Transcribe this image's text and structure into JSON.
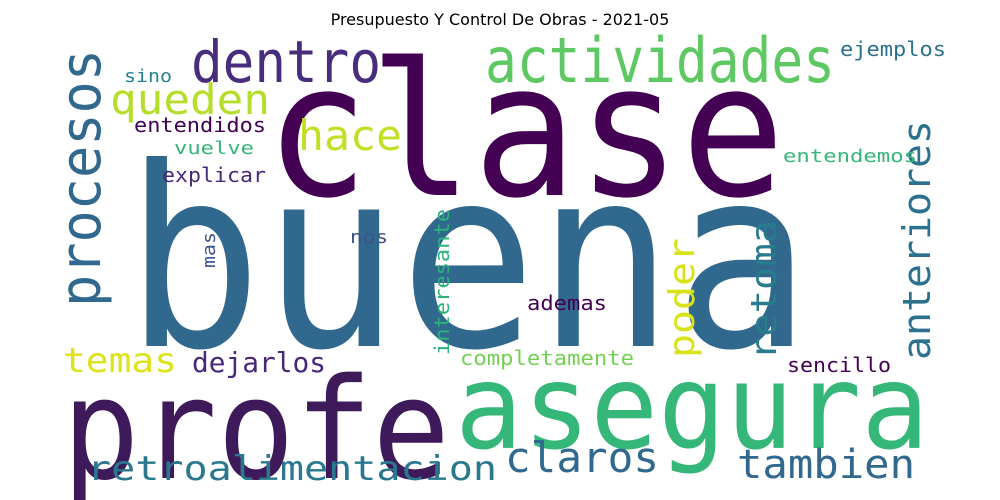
{
  "title": "Presupuesto Y Control De Obras - 2021-05",
  "words": [
    {
      "text": "buena",
      "color": "#31688e"
    },
    {
      "text": "clase",
      "color": "#440154"
    },
    {
      "text": "profe",
      "color": "#3e1a5a"
    },
    {
      "text": "asegura",
      "color": "#35b779"
    },
    {
      "text": "actividades",
      "color": "#5ec962"
    },
    {
      "text": "dentro",
      "color": "#472d7b"
    },
    {
      "text": "procesos",
      "color": "#31688e"
    },
    {
      "text": "queden",
      "color": "#b5de2b"
    },
    {
      "text": "hace",
      "color": "#c2df23"
    },
    {
      "text": "anteriores",
      "color": "#2c728e"
    },
    {
      "text": "retoma",
      "color": "#287c8e"
    },
    {
      "text": "poder",
      "color": "#d8e219"
    },
    {
      "text": "temas",
      "color": "#dde318"
    },
    {
      "text": "dejarlos",
      "color": "#482878"
    },
    {
      "text": "retroalimentacion",
      "color": "#2a788e"
    },
    {
      "text": "claros",
      "color": "#31688e"
    },
    {
      "text": "tambien",
      "color": "#31688e"
    },
    {
      "text": "ejemplos",
      "color": "#2c728e"
    },
    {
      "text": "sino",
      "color": "#26828e"
    },
    {
      "text": "entendidos",
      "color": "#440154"
    },
    {
      "text": "vuelve",
      "color": "#35b779"
    },
    {
      "text": "explicar",
      "color": "#482878"
    },
    {
      "text": "entendemos",
      "color": "#35b779"
    },
    {
      "text": "nos",
      "color": "#3b528b"
    },
    {
      "text": "mas",
      "color": "#3b528b"
    },
    {
      "text": "interesante",
      "color": "#2db27d"
    },
    {
      "text": "ademas",
      "color": "#440154"
    },
    {
      "text": "completamente",
      "color": "#73d055"
    },
    {
      "text": "sencillo",
      "color": "#440154"
    }
  ]
}
